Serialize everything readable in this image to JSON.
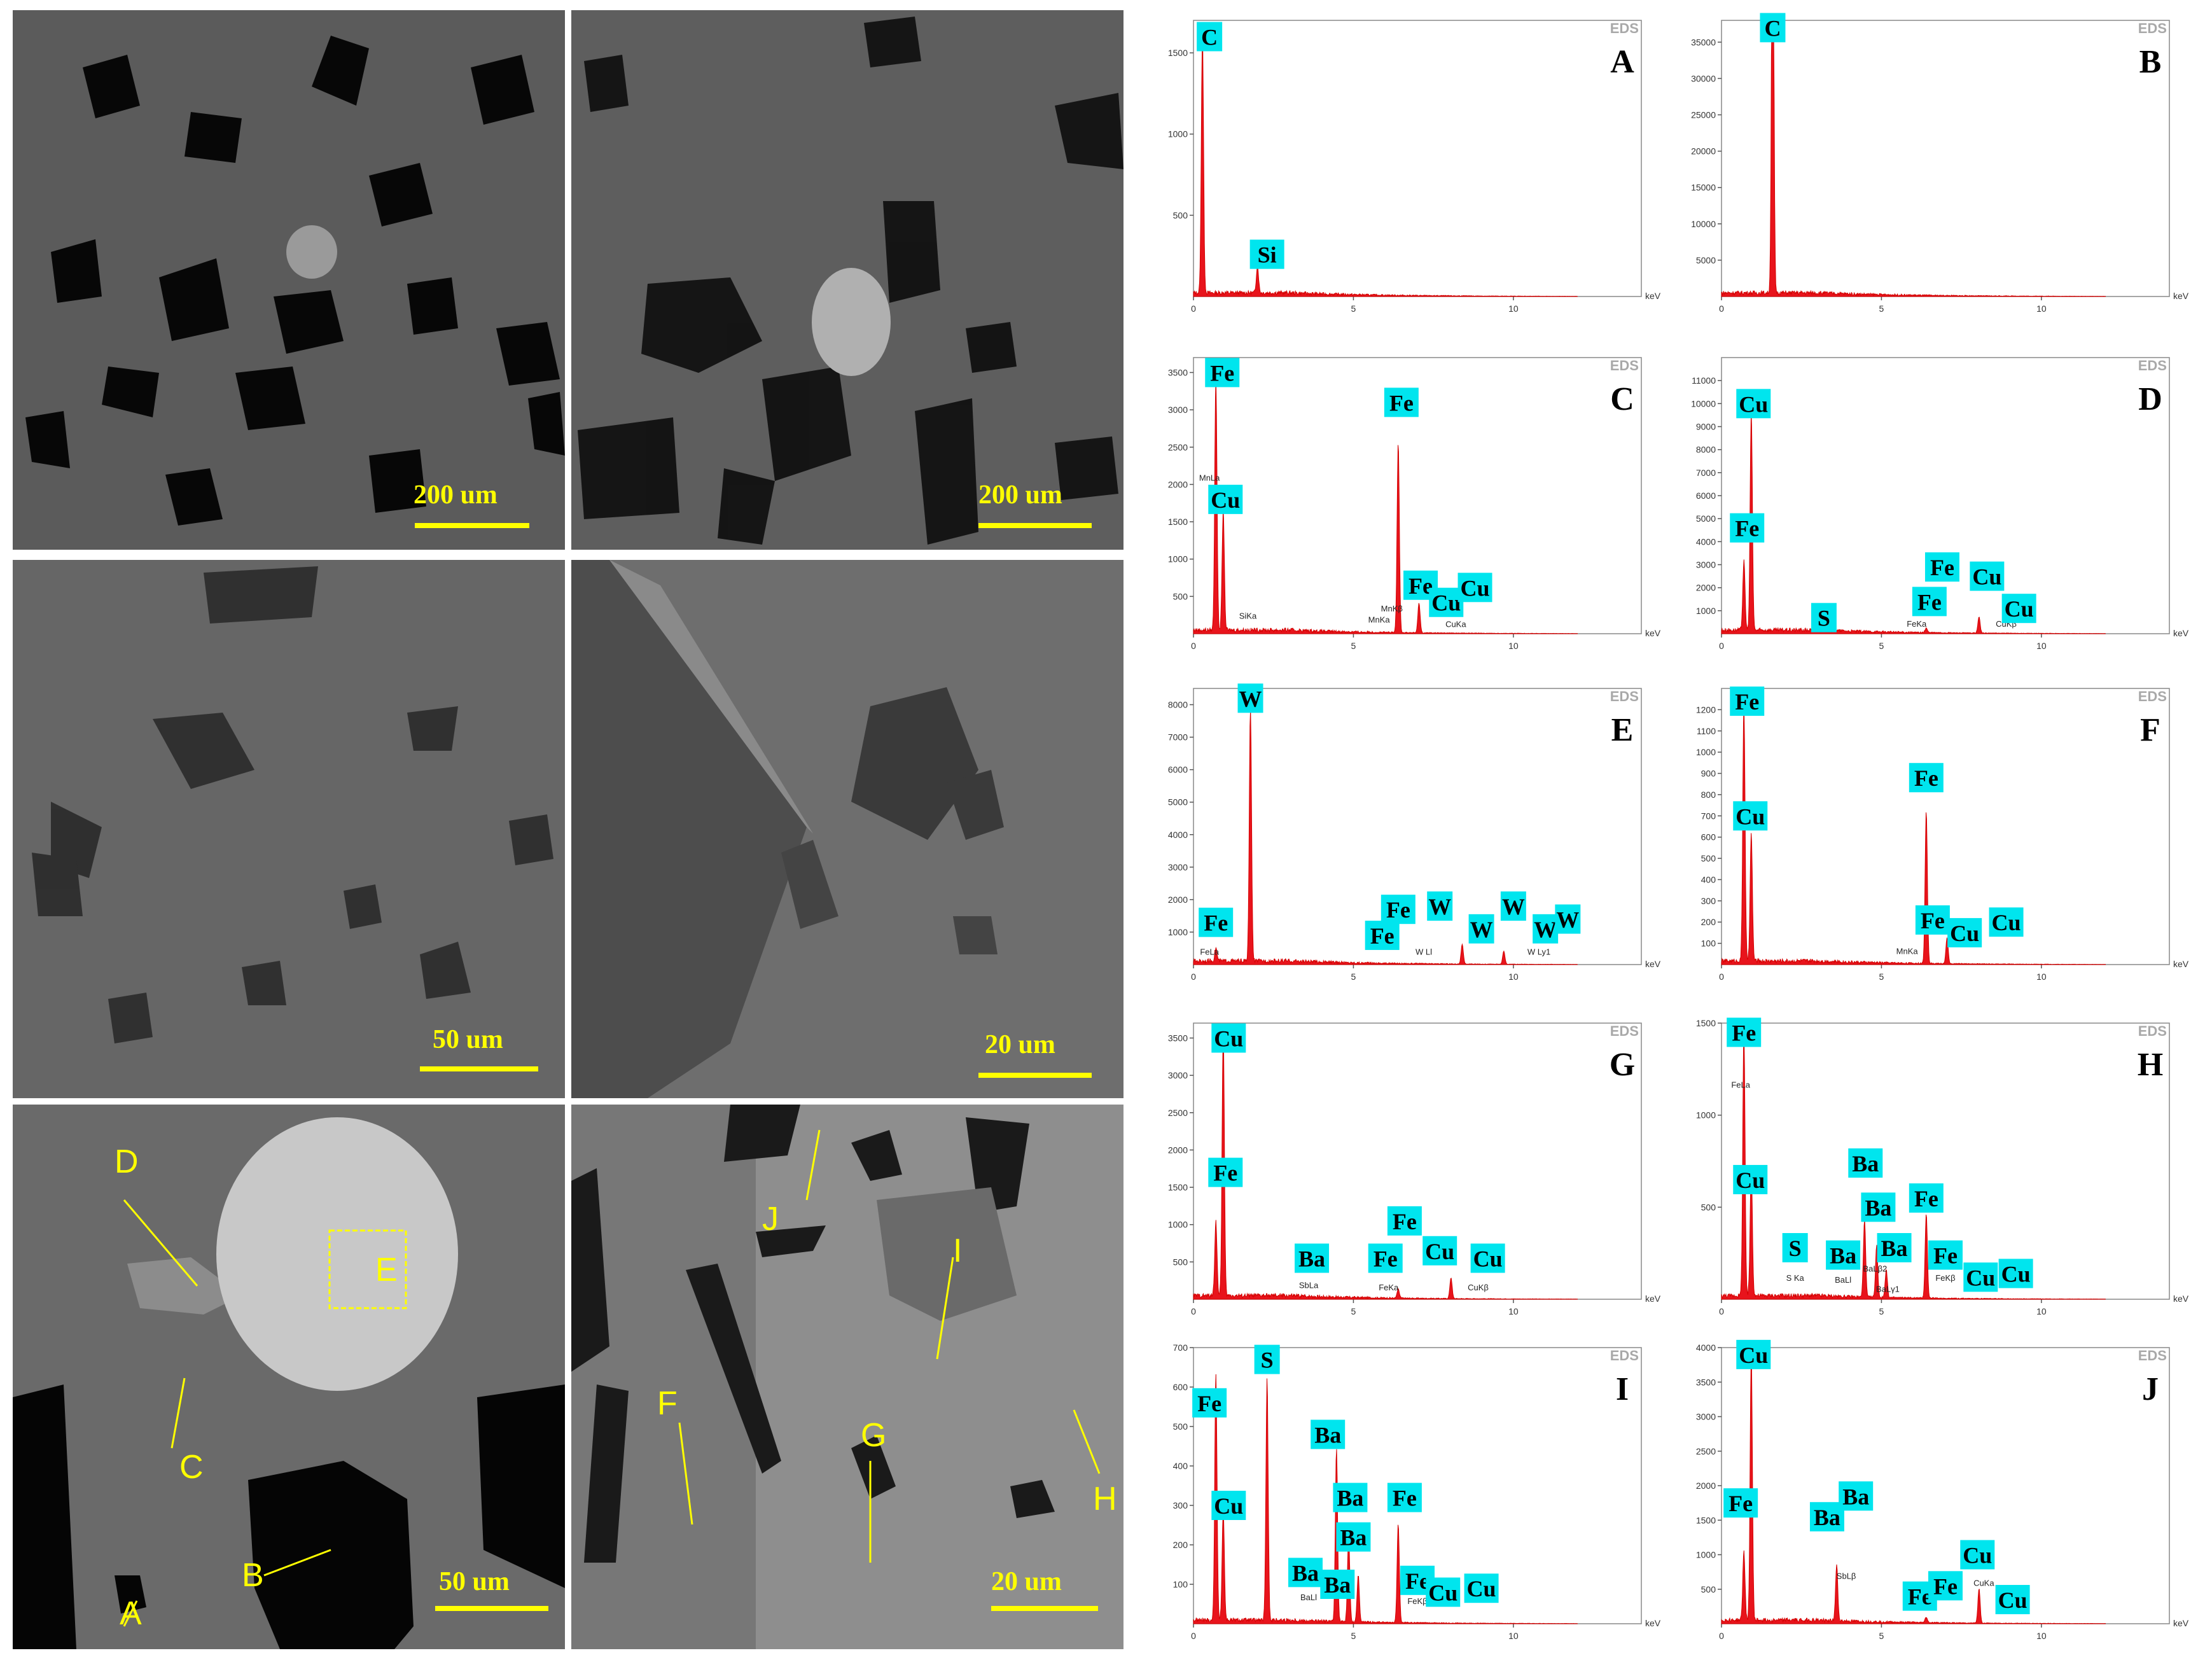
{
  "sem_panels": [
    {
      "id": "sem-1",
      "scale": "200 um"
    },
    {
      "id": "sem-2",
      "scale": "200 um"
    },
    {
      "id": "sem-3",
      "scale": "50 um"
    },
    {
      "id": "sem-4",
      "scale": "20 um"
    },
    {
      "id": "sem-5",
      "scale": "50 um",
      "labels": [
        "D",
        "E",
        "C",
        "A",
        "B"
      ]
    },
    {
      "id": "sem-6",
      "scale": "20 um",
      "labels": [
        "J",
        "I",
        "F",
        "G",
        "H"
      ]
    }
  ],
  "eds_badge": "EDS",
  "unit": "keV",
  "chart_data": [
    {
      "type": "line",
      "panel": "A",
      "ylim": [
        0,
        1700
      ],
      "yticks": [
        "500",
        "1000",
        "1500"
      ],
      "xticks": [
        "0",
        "5",
        "10"
      ],
      "peaks": [
        {
          "x": 0.28,
          "y": 1580
        },
        {
          "x": 2.0,
          "y": 170
        }
      ],
      "labels": [
        {
          "text": "C",
          "x": 0.5,
          "y": 1600
        },
        {
          "text": "Si",
          "x": 2.3,
          "y": 260
        }
      ],
      "small": []
    },
    {
      "type": "line",
      "panel": "B",
      "ylim": [
        0,
        38000
      ],
      "yticks": [
        "5000",
        "10000",
        "15000",
        "20000",
        "25000",
        "30000",
        "35000"
      ],
      "xticks": [
        "0",
        "5",
        "10"
      ],
      "peaks": [
        {
          "x": 1.6,
          "y": 26000
        },
        {
          "x": 1.6,
          "y": 37000
        }
      ],
      "labels": [
        {
          "text": "C",
          "x": 1.6,
          "y": 37000
        }
      ],
      "small": []
    },
    {
      "type": "line",
      "panel": "C",
      "ylim": [
        0,
        3700
      ],
      "yticks": [
        "500",
        "1000",
        "1500",
        "2000",
        "2500",
        "3000",
        "3500"
      ],
      "xticks": [
        "0",
        "5",
        "10"
      ],
      "peaks": [
        {
          "x": 0.7,
          "y": 3400
        },
        {
          "x": 0.93,
          "y": 1600
        },
        {
          "x": 6.4,
          "y": 2550
        },
        {
          "x": 7.05,
          "y": 400
        }
      ],
      "labels": [
        {
          "text": "Fe",
          "x": 0.9,
          "y": 3500
        },
        {
          "text": "Fe",
          "x": 6.5,
          "y": 3100
        },
        {
          "text": "Cu",
          "x": 1.0,
          "y": 1800
        },
        {
          "text": "Fe",
          "x": 7.1,
          "y": 650
        },
        {
          "text": "Cu",
          "x": 7.9,
          "y": 420
        },
        {
          "text": "Cu",
          "x": 8.8,
          "y": 620
        }
      ],
      "small": [
        {
          "text": "MnLa",
          "x": 0.5,
          "y": 2050
        },
        {
          "text": "SiKa",
          "x": 1.7,
          "y": 200
        },
        {
          "text": "MnKa",
          "x": 5.8,
          "y": 150
        },
        {
          "text": "MnKβ",
          "x": 6.2,
          "y": 300
        },
        {
          "text": "CuKa",
          "x": 8.2,
          "y": 90
        }
      ]
    },
    {
      "type": "line",
      "panel": "D",
      "ylim": [
        0,
        12000
      ],
      "yticks": [
        "1000",
        "2000",
        "3000",
        "4000",
        "5000",
        "6000",
        "7000",
        "8000",
        "9000",
        "10000",
        "11000"
      ],
      "xticks": [
        "0",
        "5",
        "10"
      ],
      "peaks": [
        {
          "x": 0.93,
          "y": 9500
        },
        {
          "x": 0.7,
          "y": 3000
        },
        {
          "x": 8.05,
          "y": 700
        },
        {
          "x": 6.4,
          "y": 200
        }
      ],
      "labels": [
        {
          "text": "Cu",
          "x": 1.0,
          "y": 10000
        },
        {
          "text": "Fe",
          "x": 0.8,
          "y": 4600
        },
        {
          "text": "S",
          "x": 3.2,
          "y": 700
        },
        {
          "text": "Fe",
          "x": 6.9,
          "y": 2900
        },
        {
          "text": "Cu",
          "x": 8.3,
          "y": 2500
        },
        {
          "text": "Fe",
          "x": 6.5,
          "y": 1400
        },
        {
          "text": "Cu",
          "x": 9.3,
          "y": 1100
        }
      ],
      "small": [
        {
          "text": "FeKa",
          "x": 6.1,
          "y": 300
        },
        {
          "text": "CuKβ",
          "x": 8.9,
          "y": 300
        }
      ]
    },
    {
      "type": "line",
      "panel": "E",
      "ylim": [
        0,
        8500
      ],
      "yticks": [
        "1000",
        "2000",
        "3000",
        "4000",
        "5000",
        "6000",
        "7000",
        "8000"
      ],
      "xticks": [
        "0",
        "5",
        "10"
      ],
      "peaks": [
        {
          "x": 1.78,
          "y": 7800
        },
        {
          "x": 0.7,
          "y": 400
        },
        {
          "x": 8.4,
          "y": 600
        },
        {
          "x": 9.7,
          "y": 400
        }
      ],
      "labels": [
        {
          "text": "W",
          "x": 1.78,
          "y": 8200
        },
        {
          "text": "Fe",
          "x": 0.7,
          "y": 1300
        },
        {
          "text": "Fe",
          "x": 6.4,
          "y": 1700
        },
        {
          "text": "W",
          "x": 7.7,
          "y": 1800
        },
        {
          "text": "W",
          "x": 10.0,
          "y": 1800
        },
        {
          "text": "Fe",
          "x": 5.9,
          "y": 900
        },
        {
          "text": "W",
          "x": 9.0,
          "y": 1100
        },
        {
          "text": "W",
          "x": 11.0,
          "y": 1100
        },
        {
          "text": "W",
          "x": 11.7,
          "y": 1400
        }
      ],
      "small": [
        {
          "text": "FeLa",
          "x": 0.5,
          "y": 300
        },
        {
          "text": "FeKa",
          "x": 6.0,
          "y": 450
        },
        {
          "text": "W Ll",
          "x": 7.2,
          "y": 300
        },
        {
          "text": "W Ly1",
          "x": 10.8,
          "y": 300
        }
      ]
    },
    {
      "type": "line",
      "panel": "F",
      "ylim": [
        0,
        1300
      ],
      "yticks": [
        "100",
        "200",
        "300",
        "400",
        "500",
        "600",
        "700",
        "800",
        "900",
        "1000",
        "1100",
        "1200"
      ],
      "xticks": [
        "0",
        "5",
        "10"
      ],
      "peaks": [
        {
          "x": 0.7,
          "y": 1220
        },
        {
          "x": 0.93,
          "y": 600
        },
        {
          "x": 6.4,
          "y": 720
        },
        {
          "x": 7.05,
          "y": 120
        }
      ],
      "labels": [
        {
          "text": "Fe",
          "x": 0.8,
          "y": 1240
        },
        {
          "text": "Cu",
          "x": 0.9,
          "y": 700
        },
        {
          "text": "Fe",
          "x": 6.4,
          "y": 880
        },
        {
          "text": "Fe",
          "x": 6.6,
          "y": 210
        },
        {
          "text": "Cu",
          "x": 7.6,
          "y": 150
        },
        {
          "text": "Cu",
          "x": 8.9,
          "y": 200
        }
      ],
      "small": [
        {
          "text": "MnKa",
          "x": 5.8,
          "y": 50
        }
      ]
    },
    {
      "type": "line",
      "panel": "G",
      "ylim": [
        0,
        3700
      ],
      "yticks": [
        "500",
        "1000",
        "1500",
        "2000",
        "2500",
        "3000",
        "3500"
      ],
      "xticks": [
        "0",
        "5",
        "10"
      ],
      "peaks": [
        {
          "x": 0.93,
          "y": 3600
        },
        {
          "x": 0.7,
          "y": 1000
        },
        {
          "x": 8.05,
          "y": 280
        },
        {
          "x": 6.4,
          "y": 120
        }
      ],
      "labels": [
        {
          "text": "Cu",
          "x": 1.1,
          "y": 3500
        },
        {
          "text": "Fe",
          "x": 1.0,
          "y": 1700
        },
        {
          "text": "Ba",
          "x": 3.7,
          "y": 550
        },
        {
          "text": "Fe",
          "x": 6.6,
          "y": 1050
        },
        {
          "text": "Fe",
          "x": 6.0,
          "y": 550
        },
        {
          "text": "Cu",
          "x": 7.7,
          "y": 650
        },
        {
          "text": "Cu",
          "x": 9.2,
          "y": 550
        }
      ],
      "small": [
        {
          "text": "SbLa",
          "x": 3.6,
          "y": 150
        },
        {
          "text": "FeKa",
          "x": 6.1,
          "y": 120
        },
        {
          "text": "CuKβ",
          "x": 8.9,
          "y": 120
        }
      ]
    },
    {
      "type": "line",
      "panel": "H",
      "ylim": [
        0,
        1500
      ],
      "yticks": [
        "500",
        "1000",
        "1500"
      ],
      "xticks": [
        "0",
        "5",
        "10"
      ],
      "peaks": [
        {
          "x": 0.7,
          "y": 1450
        },
        {
          "x": 0.93,
          "y": 700
        },
        {
          "x": 4.47,
          "y": 420
        },
        {
          "x": 4.85,
          "y": 280
        },
        {
          "x": 6.4,
          "y": 460
        },
        {
          "x": 5.15,
          "y": 150
        }
      ],
      "labels": [
        {
          "text": "Fe",
          "x": 0.7,
          "y": 1450
        },
        {
          "text": "Cu",
          "x": 0.9,
          "y": 650
        },
        {
          "text": "S",
          "x": 2.3,
          "y": 280
        },
        {
          "text": "Ba",
          "x": 4.5,
          "y": 740
        },
        {
          "text": "Ba",
          "x": 4.9,
          "y": 500
        },
        {
          "text": "Fe",
          "x": 6.4,
          "y": 550
        },
        {
          "text": "Ba",
          "x": 3.8,
          "y": 240
        },
        {
          "text": "Ba",
          "x": 5.4,
          "y": 280
        },
        {
          "text": "Fe",
          "x": 7.0,
          "y": 240
        },
        {
          "text": "Cu",
          "x": 8.1,
          "y": 120
        },
        {
          "text": "Cu",
          "x": 9.2,
          "y": 140
        }
      ],
      "small": [
        {
          "text": "FeLa",
          "x": 0.6,
          "y": 1150
        },
        {
          "text": "S Ka",
          "x": 2.3,
          "y": 100
        },
        {
          "text": "BaLl",
          "x": 3.8,
          "y": 90
        },
        {
          "text": "BaLβ2",
          "x": 4.8,
          "y": 150
        },
        {
          "text": "BaLγ1",
          "x": 5.2,
          "y": 40
        },
        {
          "text": "FeKβ",
          "x": 7.0,
          "y": 100
        }
      ]
    },
    {
      "type": "line",
      "panel": "I",
      "ylim": [
        0,
        700
      ],
      "yticks": [
        "100",
        "200",
        "300",
        "400",
        "500",
        "600",
        "700"
      ],
      "xticks": [
        "0",
        "5",
        "10"
      ],
      "peaks": [
        {
          "x": 0.7,
          "y": 630
        },
        {
          "x": 0.93,
          "y": 280
        },
        {
          "x": 2.3,
          "y": 610
        },
        {
          "x": 4.47,
          "y": 440
        },
        {
          "x": 4.85,
          "y": 220
        },
        {
          "x": 6.4,
          "y": 250
        },
        {
          "x": 5.15,
          "y": 120
        }
      ],
      "labels": [
        {
          "text": "Fe",
          "x": 0.5,
          "y": 560
        },
        {
          "text": "S",
          "x": 2.3,
          "y": 670
        },
        {
          "text": "Cu",
          "x": 1.1,
          "y": 300
        },
        {
          "text": "Ba",
          "x": 4.2,
          "y": 480
        },
        {
          "text": "Ba",
          "x": 4.9,
          "y": 320
        },
        {
          "text": "Fe",
          "x": 6.6,
          "y": 320
        },
        {
          "text": "Ba",
          "x": 5.0,
          "y": 220
        },
        {
          "text": "Ba",
          "x": 3.5,
          "y": 130
        },
        {
          "text": "Ba",
          "x": 4.5,
          "y": 100
        },
        {
          "text": "Fe",
          "x": 7.0,
          "y": 110
        },
        {
          "text": "Cu",
          "x": 7.8,
          "y": 80
        },
        {
          "text": "Cu",
          "x": 9.0,
          "y": 90
        }
      ],
      "small": [
        {
          "text": "BaLl",
          "x": 3.6,
          "y": 60
        },
        {
          "text": "FeKβ",
          "x": 7.0,
          "y": 50
        }
      ]
    },
    {
      "type": "line",
      "panel": "J",
      "ylim": [
        0,
        4000
      ],
      "yticks": [
        "500",
        "1000",
        "1500",
        "2000",
        "2500",
        "3000",
        "3500",
        "4000"
      ],
      "xticks": [
        "0",
        "5",
        "10"
      ],
      "peaks": [
        {
          "x": 0.93,
          "y": 3900
        },
        {
          "x": 0.7,
          "y": 1000
        },
        {
          "x": 3.6,
          "y": 800
        },
        {
          "x": 8.05,
          "y": 500
        },
        {
          "x": 6.4,
          "y": 80
        }
      ],
      "labels": [
        {
          "text": "Cu",
          "x": 1.0,
          "y": 3900
        },
        {
          "text": "Fe",
          "x": 0.6,
          "y": 1750
        },
        {
          "text": "Ba",
          "x": 3.3,
          "y": 1550
        },
        {
          "text": "Ba",
          "x": 4.2,
          "y": 1850
        },
        {
          "text": "Cu",
          "x": 8.0,
          "y": 1000
        },
        {
          "text": "Fe",
          "x": 6.2,
          "y": 400
        },
        {
          "text": "Fe",
          "x": 7.0,
          "y": 550
        },
        {
          "text": "Cu",
          "x": 9.1,
          "y": 350
        }
      ],
      "small": [
        {
          "text": "SbLβ",
          "x": 3.9,
          "y": 650
        },
        {
          "text": "CuKa",
          "x": 8.2,
          "y": 550
        }
      ]
    }
  ]
}
